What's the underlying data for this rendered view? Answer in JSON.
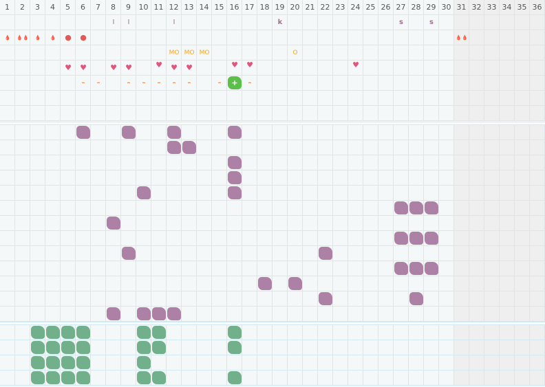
{
  "columns": [
    "1",
    "2",
    "3",
    "4",
    "5",
    "6",
    "7",
    "8",
    "9",
    "10",
    "11",
    "12",
    "13",
    "14",
    "15",
    "16",
    "17",
    "18",
    "19",
    "20",
    "21",
    "22",
    "23",
    "24",
    "25",
    "26",
    "27",
    "28",
    "29",
    "30",
    "31",
    "32",
    "33",
    "34",
    "35",
    "36"
  ],
  "shaded_from_column": 31,
  "colors": {
    "purple_blob": "#ad80a6",
    "green_blob": "#72b08c",
    "highlight_blob": "#5cbf4a",
    "heart": "#e0567a",
    "drop": "#e05a5a",
    "mo": "#f5a623",
    "dash": "#ef8f5c"
  },
  "top_section": {
    "rows": 7,
    "marks": [
      {
        "row": 0,
        "col": 8,
        "type": "bar",
        "text": "I"
      },
      {
        "row": 0,
        "col": 9,
        "type": "bar",
        "text": "I"
      },
      {
        "row": 0,
        "col": 12,
        "type": "bar",
        "text": "I"
      },
      {
        "row": 0,
        "col": 19,
        "type": "letter",
        "text": "k"
      },
      {
        "row": 0,
        "col": 27,
        "type": "letter",
        "text": "s"
      },
      {
        "row": 0,
        "col": 29,
        "type": "letter",
        "text": "s"
      },
      {
        "row": 1,
        "col": 1,
        "type": "drop",
        "text": "💧"
      },
      {
        "row": 1,
        "col": 2,
        "type": "drop",
        "text": "💧💧"
      },
      {
        "row": 1,
        "col": 3,
        "type": "drop",
        "text": "💧"
      },
      {
        "row": 1,
        "col": 4,
        "type": "drop",
        "text": "💧"
      },
      {
        "row": 1,
        "col": 5,
        "type": "dot",
        "text": "●"
      },
      {
        "row": 1,
        "col": 6,
        "type": "dot",
        "text": "●"
      },
      {
        "row": 1,
        "col": 31,
        "type": "drop",
        "text": "💧💧"
      },
      {
        "row": 2,
        "col": 12,
        "type": "mo",
        "text": "MO"
      },
      {
        "row": 2,
        "col": 13,
        "type": "mo",
        "text": "MO"
      },
      {
        "row": 2,
        "col": 14,
        "type": "mo",
        "text": "MO"
      },
      {
        "row": 2,
        "col": 20,
        "type": "mo",
        "text": "O"
      },
      {
        "row": 3,
        "col": 5,
        "type": "heart",
        "text": "♥"
      },
      {
        "row": 3,
        "col": 6,
        "type": "heart",
        "text": "♥"
      },
      {
        "row": 3,
        "col": 8,
        "type": "heart",
        "text": "♥"
      },
      {
        "row": 3,
        "col": 9,
        "type": "heart",
        "text": "♥"
      },
      {
        "row": 3,
        "col": 11,
        "type": "heart up",
        "text": "♥"
      },
      {
        "row": 3,
        "col": 12,
        "type": "heart",
        "text": "♥"
      },
      {
        "row": 3,
        "col": 13,
        "type": "heart",
        "text": "♥"
      },
      {
        "row": 3,
        "col": 16,
        "type": "heart up",
        "text": "♥"
      },
      {
        "row": 3,
        "col": 17,
        "type": "heart up",
        "text": "♥"
      },
      {
        "row": 3,
        "col": 24,
        "type": "heart up",
        "text": "♥"
      },
      {
        "row": 4,
        "col": 6,
        "type": "dash",
        "text": "–"
      },
      {
        "row": 4,
        "col": 7,
        "type": "dash",
        "text": "–"
      },
      {
        "row": 4,
        "col": 9,
        "type": "dash",
        "text": "–"
      },
      {
        "row": 4,
        "col": 10,
        "type": "dash",
        "text": "–"
      },
      {
        "row": 4,
        "col": 11,
        "type": "dash",
        "text": "–"
      },
      {
        "row": 4,
        "col": 12,
        "type": "dash",
        "text": "–"
      },
      {
        "row": 4,
        "col": 13,
        "type": "dash",
        "text": "–"
      },
      {
        "row": 4,
        "col": 15,
        "type": "dash",
        "text": "–"
      },
      {
        "row": 4,
        "col": 16,
        "type": "plus",
        "text": "+"
      },
      {
        "row": 4,
        "col": 17,
        "type": "dash",
        "text": "–"
      }
    ]
  },
  "middle_section": {
    "rows": 13,
    "blobs": [
      [
        0,
        6
      ],
      [
        0,
        9
      ],
      [
        0,
        12
      ],
      [
        0,
        16
      ],
      [
        1,
        12
      ],
      [
        1,
        13
      ],
      [
        2,
        16
      ],
      [
        3,
        16
      ],
      [
        4,
        10
      ],
      [
        4,
        16
      ],
      [
        5,
        27
      ],
      [
        5,
        28
      ],
      [
        5,
        29
      ],
      [
        6,
        8
      ],
      [
        7,
        27
      ],
      [
        7,
        28
      ],
      [
        7,
        29
      ],
      [
        8,
        9
      ],
      [
        8,
        22
      ],
      [
        9,
        27
      ],
      [
        9,
        28
      ],
      [
        9,
        29
      ],
      [
        10,
        18
      ],
      [
        10,
        20
      ],
      [
        11,
        22
      ],
      [
        11,
        28
      ],
      [
        12,
        8
      ],
      [
        12,
        10
      ],
      [
        12,
        11
      ],
      [
        12,
        12
      ]
    ]
  },
  "bottom_section": {
    "rows": 4,
    "blobs": [
      [
        0,
        3
      ],
      [
        0,
        4
      ],
      [
        0,
        5
      ],
      [
        0,
        6
      ],
      [
        0,
        10
      ],
      [
        0,
        11
      ],
      [
        0,
        16
      ],
      [
        1,
        3
      ],
      [
        1,
        4
      ],
      [
        1,
        5
      ],
      [
        1,
        6
      ],
      [
        1,
        10
      ],
      [
        1,
        11
      ],
      [
        1,
        16
      ],
      [
        2,
        3
      ],
      [
        2,
        4
      ],
      [
        2,
        5
      ],
      [
        2,
        6
      ],
      [
        2,
        10
      ],
      [
        3,
        3
      ],
      [
        3,
        4
      ],
      [
        3,
        5
      ],
      [
        3,
        6
      ],
      [
        3,
        10
      ],
      [
        3,
        11
      ],
      [
        3,
        16
      ]
    ]
  }
}
